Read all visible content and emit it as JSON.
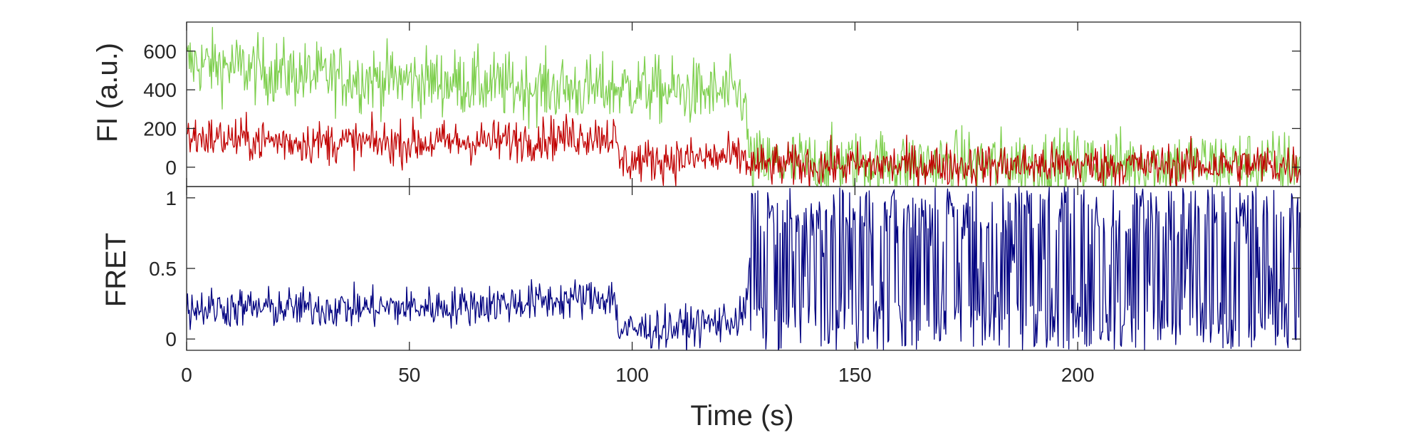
{
  "chart_data": [
    {
      "type": "line",
      "panel": "top",
      "ylabel": "FI (a.u.)",
      "xlabel": "",
      "xlim": [
        0,
        250
      ],
      "ylim": [
        -100,
        750
      ],
      "yticks": [
        0,
        200,
        400,
        600
      ],
      "ytick_labels": [
        "0",
        "200",
        "400",
        "600"
      ],
      "xticks": [
        0,
        50,
        100,
        150,
        200
      ],
      "grid": false,
      "series": [
        {
          "color": "#7ecf4e",
          "noise": 85,
          "values": [
            [
              0,
              540
            ],
            [
              10,
              520
            ],
            [
              20,
              490
            ],
            [
              30,
              470
            ],
            [
              40,
              460
            ],
            [
              50,
              450
            ],
            [
              60,
              440
            ],
            [
              70,
              420
            ],
            [
              80,
              410
            ],
            [
              90,
              400
            ],
            [
              100,
              410
            ],
            [
              110,
              390
            ],
            [
              120,
              380
            ],
            [
              125,
              370
            ],
            [
              126.5,
              20
            ],
            [
              150,
              20
            ],
            [
              200,
              20
            ],
            [
              250,
              20
            ]
          ]
        },
        {
          "color": "#c00000",
          "noise": 55,
          "values": [
            [
              0,
              160
            ],
            [
              10,
              145
            ],
            [
              20,
              135
            ],
            [
              30,
              130
            ],
            [
              40,
              125
            ],
            [
              50,
              125
            ],
            [
              60,
              130
            ],
            [
              70,
              135
            ],
            [
              80,
              150
            ],
            [
              90,
              165
            ],
            [
              96,
              165
            ],
            [
              97,
              30
            ],
            [
              110,
              40
            ],
            [
              120,
              50
            ],
            [
              125,
              50
            ],
            [
              126.5,
              10
            ],
            [
              150,
              10
            ],
            [
              200,
              10
            ],
            [
              250,
              10
            ]
          ]
        }
      ]
    },
    {
      "type": "line",
      "panel": "bottom",
      "ylabel": "FRET",
      "xlabel": "Time (s)",
      "xlim": [
        0,
        250
      ],
      "ylim": [
        -0.08,
        1.08
      ],
      "yticks": [
        0,
        0.5,
        1
      ],
      "ytick_labels": [
        "0",
        "0.5",
        "1"
      ],
      "xticks": [
        0,
        50,
        100,
        150,
        200
      ],
      "xtick_labels": [
        "0",
        "50",
        "100",
        "150",
        "200"
      ],
      "grid": false,
      "series": [
        {
          "color": "#000080",
          "noise": 0.07,
          "values": [
            [
              0,
              0.22
            ],
            [
              20,
              0.22
            ],
            [
              40,
              0.22
            ],
            [
              60,
              0.23
            ],
            [
              80,
              0.27
            ],
            [
              96,
              0.3
            ],
            [
              97,
              0.06
            ],
            [
              110,
              0.08
            ],
            [
              120,
              0.12
            ],
            [
              125,
              0.15
            ],
            [
              126.5,
              0.5
            ],
            [
              150,
              0.5
            ],
            [
              200,
              0.5
            ],
            [
              250,
              0.5
            ]
          ],
          "noisy_after_x": 126.5
        }
      ]
    }
  ]
}
